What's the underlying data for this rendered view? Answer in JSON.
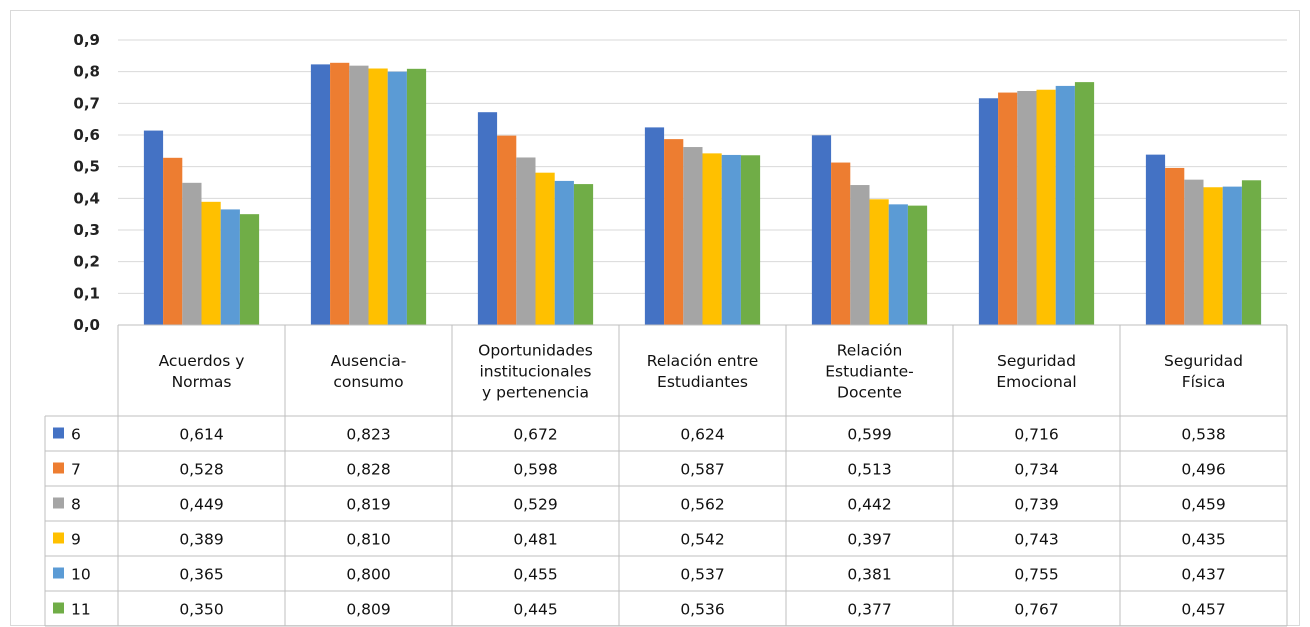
{
  "chart_data": {
    "type": "bar",
    "categories": [
      [
        "Acuerdos y",
        "Normas"
      ],
      [
        "Ausencia-",
        "consumo"
      ],
      [
        "Oportunidades",
        "institucionales",
        "y pertenencia"
      ],
      [
        "Relación entre",
        "Estudiantes"
      ],
      [
        "Relación",
        "Estudiante-",
        "Docente"
      ],
      [
        "Seguridad",
        "Emocional"
      ],
      [
        "Seguridad",
        "Física"
      ]
    ],
    "series": [
      {
        "name": "6",
        "color": "#4472C4",
        "values": [
          0.614,
          0.823,
          0.672,
          0.624,
          0.599,
          0.716,
          0.538
        ],
        "labels": [
          "0,614",
          "0,823",
          "0,672",
          "0,624",
          "0,599",
          "0,716",
          "0,538"
        ]
      },
      {
        "name": "7",
        "color": "#ED7D31",
        "values": [
          0.528,
          0.828,
          0.598,
          0.587,
          0.513,
          0.734,
          0.496
        ],
        "labels": [
          "0,528",
          "0,828",
          "0,598",
          "0,587",
          "0,513",
          "0,734",
          "0,496"
        ]
      },
      {
        "name": "8",
        "color": "#A5A5A5",
        "values": [
          0.449,
          0.819,
          0.529,
          0.562,
          0.442,
          0.739,
          0.459
        ],
        "labels": [
          "0,449",
          "0,819",
          "0,529",
          "0,562",
          "0,442",
          "0,739",
          "0,459"
        ]
      },
      {
        "name": "9",
        "color": "#FFC000",
        "values": [
          0.389,
          0.81,
          0.481,
          0.542,
          0.397,
          0.743,
          0.435
        ],
        "labels": [
          "0,389",
          "0,810",
          "0,481",
          "0,542",
          "0,397",
          "0,743",
          "0,435"
        ]
      },
      {
        "name": "10",
        "color": "#5B9BD5",
        "values": [
          0.365,
          0.8,
          0.455,
          0.537,
          0.381,
          0.755,
          0.437
        ],
        "labels": [
          "0,365",
          "0,800",
          "0,455",
          "0,537",
          "0,381",
          "0,755",
          "0,437"
        ]
      },
      {
        "name": "11",
        "color": "#70AD47",
        "values": [
          0.35,
          0.809,
          0.445,
          0.536,
          0.377,
          0.767,
          0.457
        ],
        "labels": [
          "0,350",
          "0,809",
          "0,445",
          "0,536",
          "0,377",
          "0,767",
          "0,457"
        ]
      }
    ],
    "ylim": [
      0,
      0.9
    ],
    "yticks": [
      "0,0",
      "0,1",
      "0,2",
      "0,3",
      "0,4",
      "0,5",
      "0,6",
      "0,7",
      "0,8",
      "0,9"
    ],
    "grid": true,
    "data_table": true,
    "legend": "data-table-left"
  }
}
